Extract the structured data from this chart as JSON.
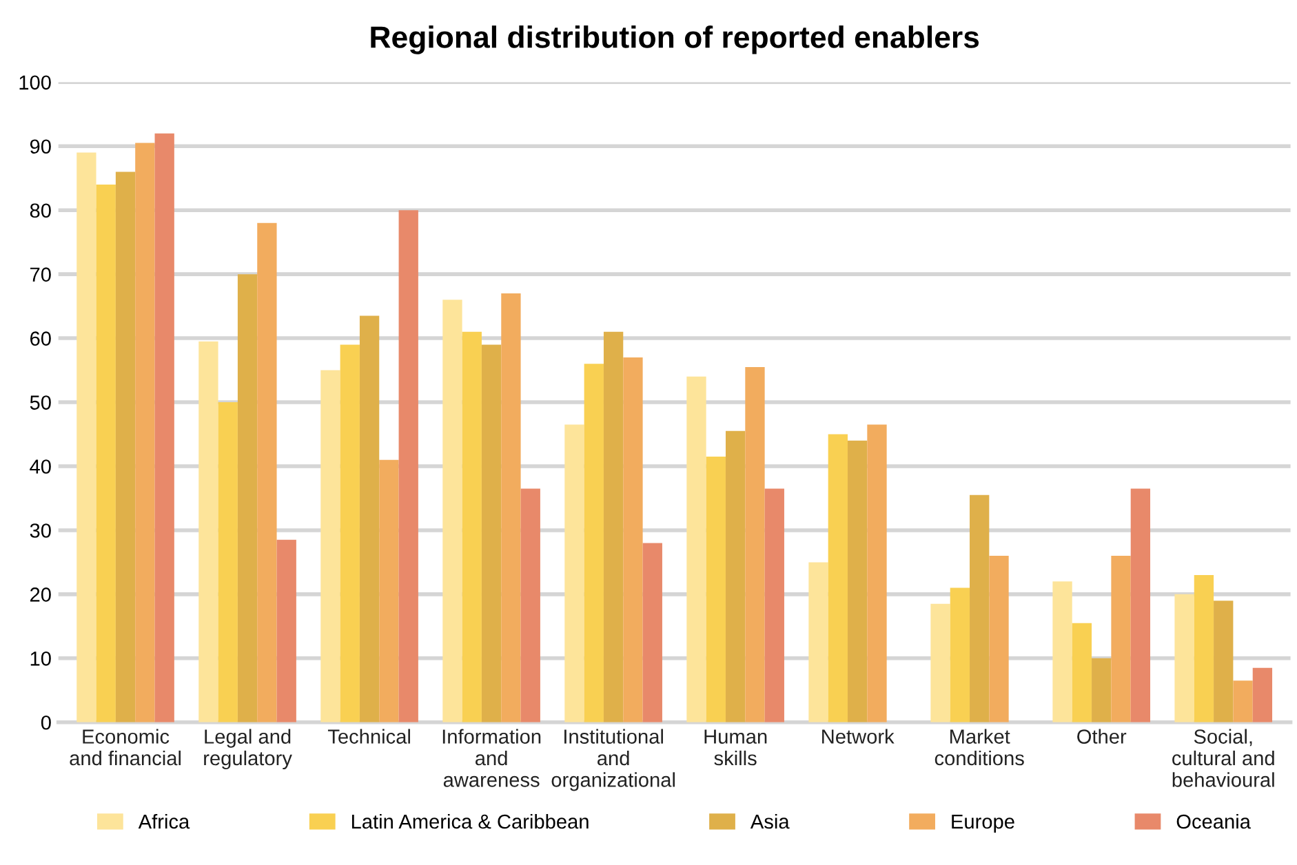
{
  "chart_data": {
    "type": "bar",
    "title": "Regional distribution of reported enablers",
    "categories": [
      "Economic\nand financial",
      "Legal and\nregulatory",
      "Technical",
      "Information\nand\nawareness",
      "Institutional\nand\norganizational",
      "Human\nskills",
      "Network",
      "Market\nconditions",
      "Other",
      "Social,\ncultural and\nbehavioural"
    ],
    "series": [
      {
        "name": "Africa",
        "color": "#fde49a",
        "values": [
          89,
          59.5,
          55,
          66,
          46.5,
          54,
          25,
          18.5,
          22,
          20
        ]
      },
      {
        "name": "Latin America & Caribbean",
        "color": "#f9d052",
        "values": [
          84,
          50,
          59,
          61,
          56,
          41.5,
          45,
          21,
          15.5,
          23
        ]
      },
      {
        "name": "Asia",
        "color": "#dfb04a",
        "values": [
          86,
          70,
          63.5,
          59,
          61,
          45.5,
          44,
          35.5,
          10,
          19
        ]
      },
      {
        "name": "Europe",
        "color": "#f2ac5e",
        "values": [
          90.5,
          78,
          41,
          67,
          57,
          55.5,
          46.5,
          26,
          26,
          6.5
        ]
      },
      {
        "name": "Oceania",
        "color": "#e8896a",
        "values": [
          92,
          28.5,
          80,
          36.5,
          28,
          36.5,
          null,
          null,
          36.5,
          8.5
        ]
      }
    ],
    "ylim": [
      0,
      100
    ],
    "yticks": [
      0,
      10,
      20,
      30,
      40,
      50,
      60,
      70,
      80,
      90,
      100
    ],
    "grid": "y",
    "legend": "bottom"
  }
}
